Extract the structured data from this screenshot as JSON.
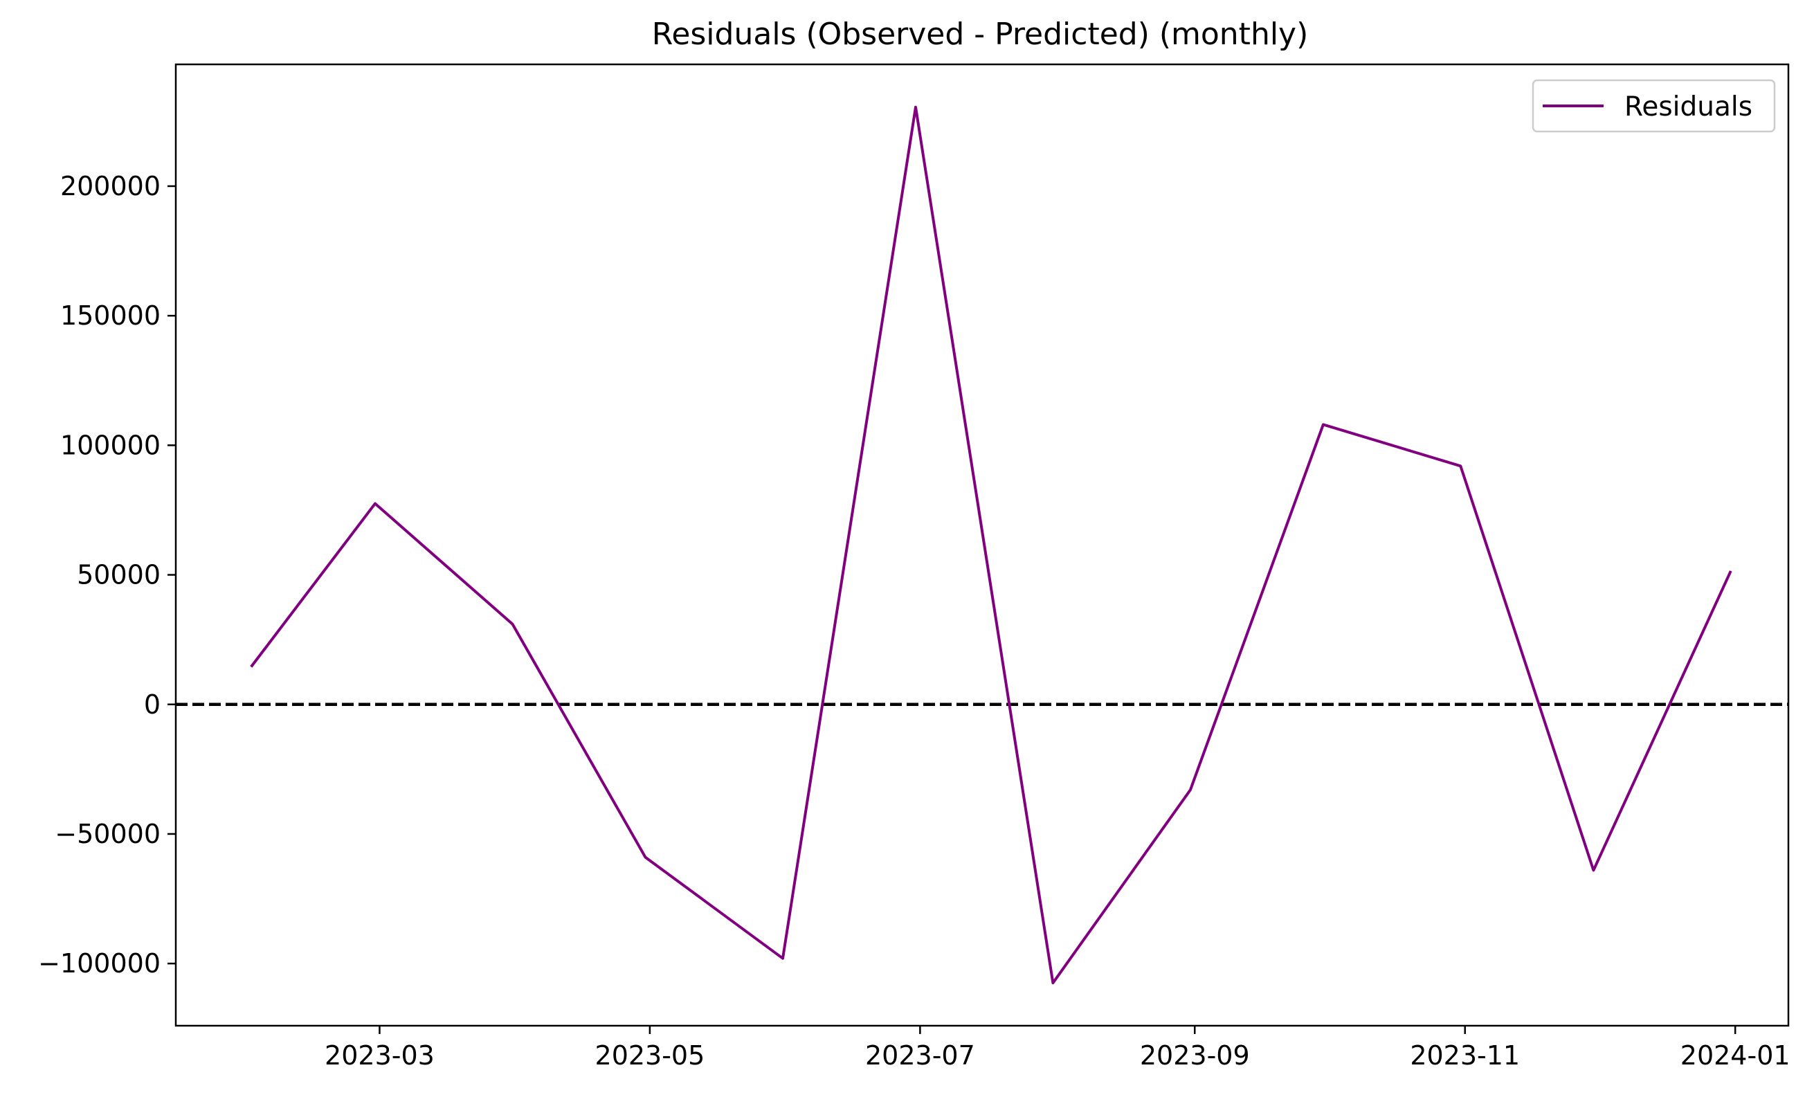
{
  "chart_data": {
    "type": "line",
    "title": "Residuals (Observed - Predicted) (monthly)",
    "xlabel": "",
    "ylabel": "",
    "x_type": "date",
    "x_tick_labels": [
      "2023-03",
      "2023-05",
      "2023-07",
      "2023-09",
      "2023-11",
      "2024-01"
    ],
    "x_tick_dates": [
      "2023-03-01",
      "2023-05-01",
      "2023-07-01",
      "2023-09-01",
      "2023-11-01",
      "2024-01-01"
    ],
    "y_ticks": [
      -100000,
      -50000,
      0,
      50000,
      100000,
      150000,
      200000
    ],
    "y_tick_labels": [
      "−100000",
      "−50000",
      "0",
      "50000",
      "100000",
      "150000",
      "200000"
    ],
    "xlim": [
      "2023-01-14",
      "2024-01-13"
    ],
    "ylim": [
      -124000,
      247000
    ],
    "grid": false,
    "legend_position": "top-right",
    "series": [
      {
        "name": "Residuals",
        "color": "#800080",
        "x": [
          "2023-01-31",
          "2023-02-28",
          "2023-03-31",
          "2023-04-30",
          "2023-05-31",
          "2023-06-30",
          "2023-07-31",
          "2023-08-31",
          "2023-09-30",
          "2023-10-31",
          "2023-11-30",
          "2023-12-31"
        ],
        "values": [
          14500,
          77500,
          31000,
          -59000,
          -98000,
          230500,
          -107500,
          -33000,
          108000,
          92000,
          -64000,
          51500
        ]
      }
    ],
    "reference_lines": [
      {
        "y": 0,
        "style": "dashed",
        "color": "#000000"
      }
    ]
  }
}
